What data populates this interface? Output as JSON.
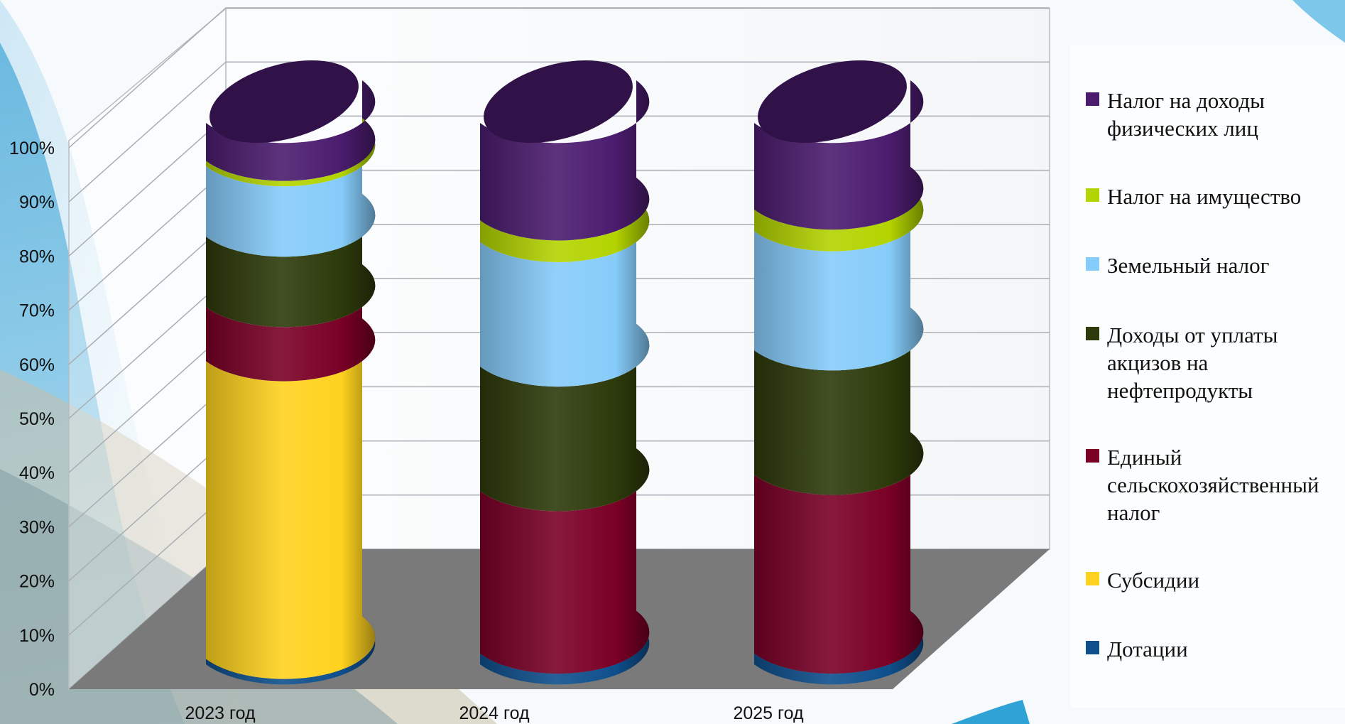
{
  "chart_data": {
    "type": "bar",
    "stacked": true,
    "percent_stacked": true,
    "three_d": true,
    "bar_shape": "cylinder",
    "categories": [
      "2023 год",
      "2024 год",
      "2025 год"
    ],
    "yticks": [
      "0%",
      "10%",
      "20%",
      "30%",
      "40%",
      "50%",
      "60%",
      "70%",
      "80%",
      "90%",
      "100%"
    ],
    "ylim": [
      0,
      100
    ],
    "grid": true,
    "legend_position": "right",
    "series": [
      {
        "name": "Дотации",
        "color": "#0e4f8c",
        "values": [
          1,
          2,
          2
        ]
      },
      {
        "name": "Субсидии",
        "color": "#ffd21f",
        "values": [
          55,
          0,
          0
        ]
      },
      {
        "name": "Единый\nсельскохозяйственный\nналог",
        "color": "#7a0026",
        "values": [
          10,
          30,
          33
        ]
      },
      {
        "name": "Доходы от уплаты\nакцизов на\nнефтепродукты",
        "color": "#2d3a0b",
        "values": [
          13,
          23,
          23
        ]
      },
      {
        "name": "Земельный налог",
        "color": "#86ccfa",
        "values": [
          13,
          23,
          22
        ]
      },
      {
        "name": "Налог на имущество",
        "color": "#b3d400",
        "values": [
          1,
          4,
          4
        ]
      },
      {
        "name": "Налог на доходы\nфизических лиц",
        "color": "#4b1c6e",
        "values": [
          7,
          18,
          16
        ]
      }
    ]
  }
}
